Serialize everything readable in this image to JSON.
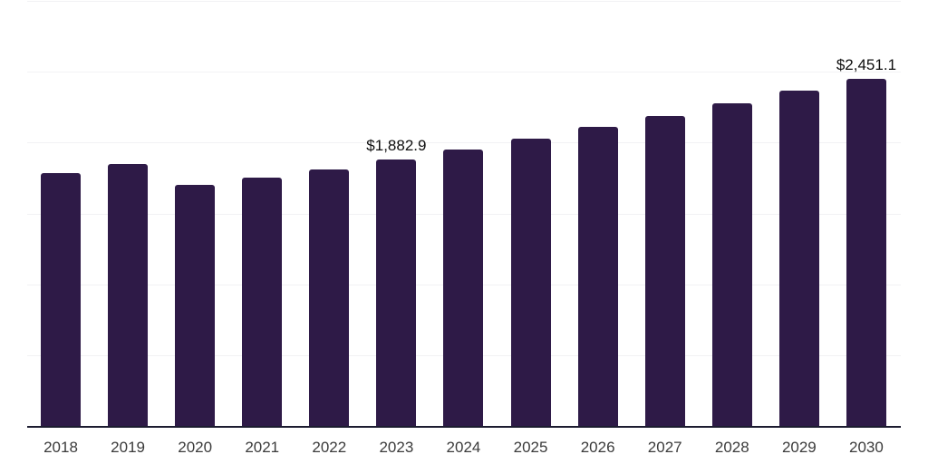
{
  "chart_data": {
    "type": "bar",
    "title": "",
    "xlabel": "",
    "ylabel": "",
    "categories": [
      "2018",
      "2019",
      "2020",
      "2021",
      "2022",
      "2023",
      "2024",
      "2025",
      "2026",
      "2027",
      "2028",
      "2029",
      "2030"
    ],
    "values": [
      1785,
      1849,
      1701,
      1753,
      1810,
      1882.9,
      1951,
      2030,
      2110,
      2190,
      2275,
      2368,
      2451.1
    ],
    "data_labels": {
      "2023": "$1,882.9",
      "2030": "$2,451.1"
    },
    "ylim": [
      0,
      3000
    ],
    "gridline_step": 500,
    "grid": "horizontal",
    "legend": "none",
    "y_tick_labels": "none",
    "value_prefix": "$"
  },
  "colors": {
    "bar": "#2E1A47",
    "gridline": "#F2F2F4",
    "axis_line": "#1C1C30",
    "tick_label": "#3B3B3B",
    "value_label": "#0E0E0E",
    "background": "#FFFFFF"
  }
}
